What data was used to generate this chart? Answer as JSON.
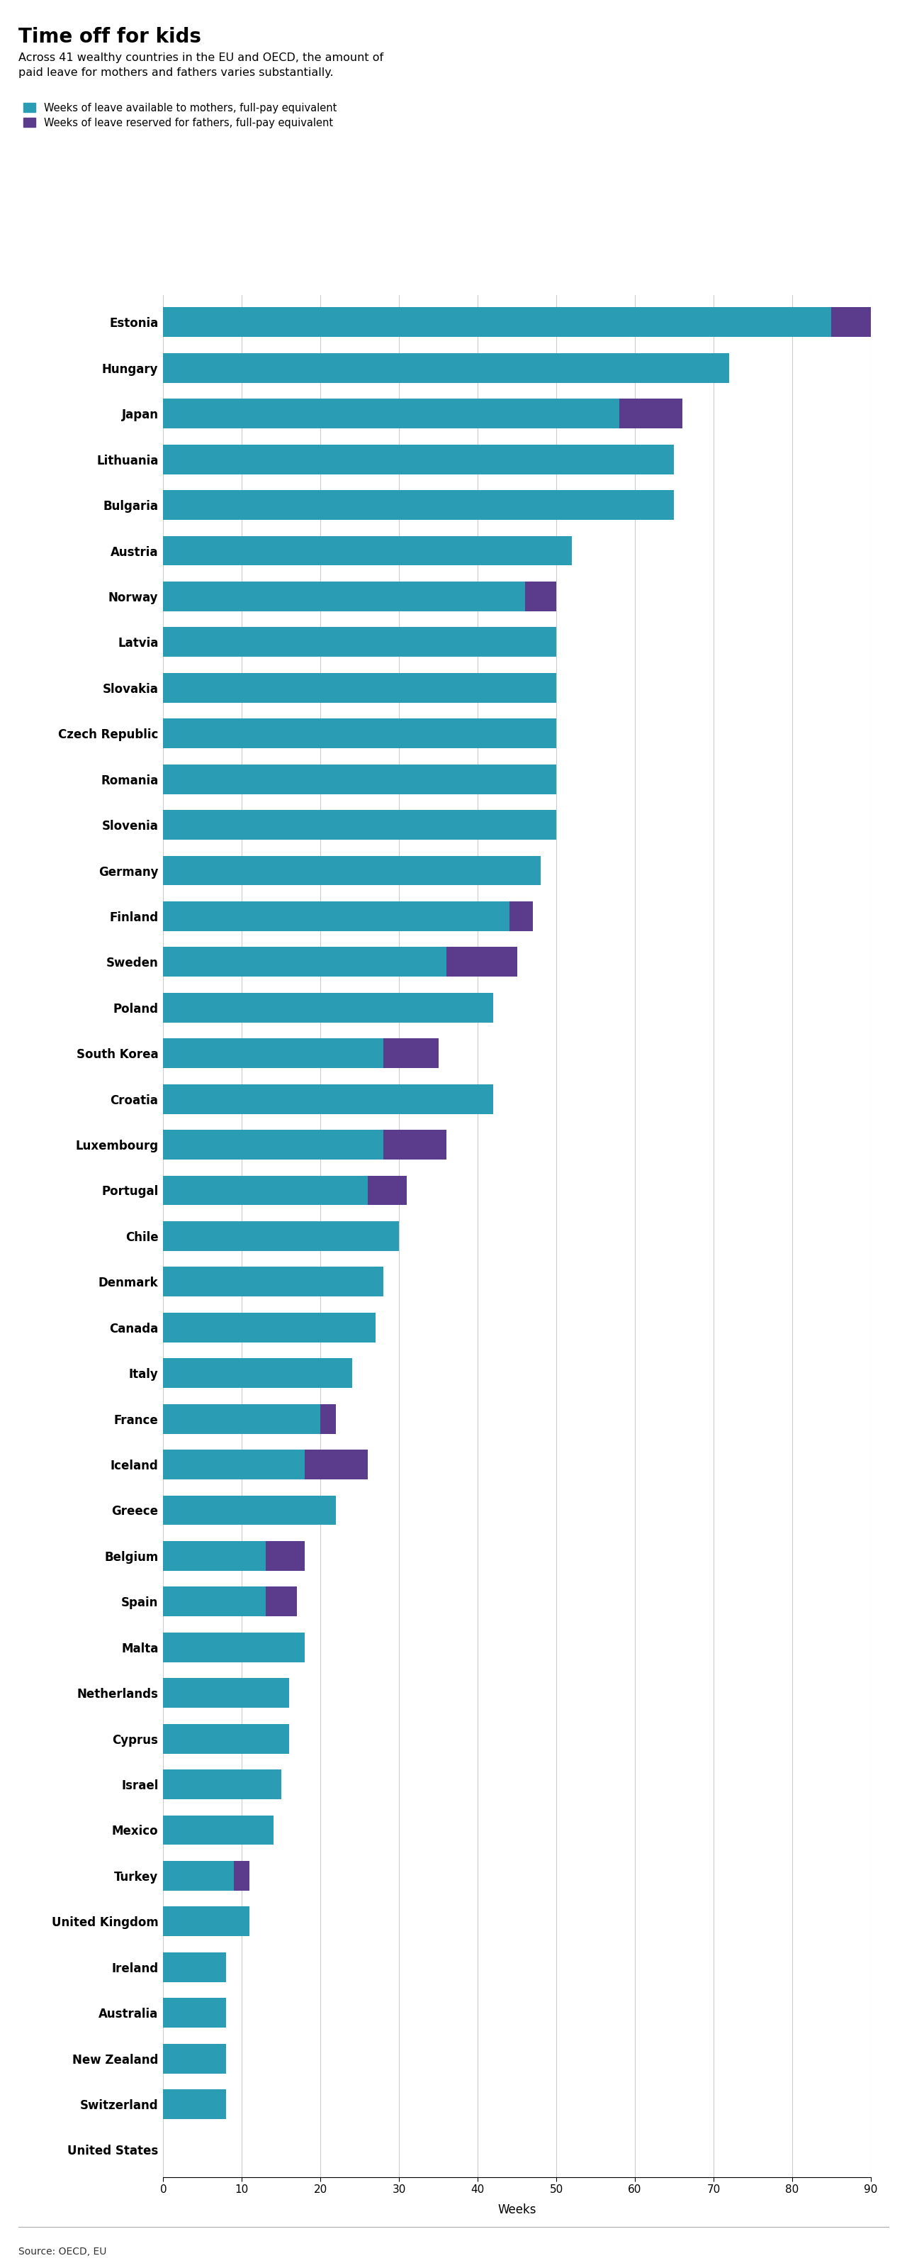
{
  "title": "Time off for kids",
  "subtitle": "Across 41 wealthy countries in the EU and OECD, the amount of\npaid leave for mothers and fathers varies substantially.",
  "legend_mothers": "Weeks of leave available to mothers, full-pay equivalent",
  "legend_fathers": "Weeks of leave reserved for fathers, full-pay equivalent",
  "color_mothers": "#2a9db5",
  "color_fathers": "#5b3b8c",
  "xlabel": "Weeks",
  "source": "Source: OECD, EU",
  "xlim": [
    0,
    90
  ],
  "xticks": [
    0,
    10,
    20,
    30,
    40,
    50,
    60,
    70,
    80,
    90
  ],
  "countries": [
    "Estonia",
    "Hungary",
    "Japan",
    "Lithuania",
    "Bulgaria",
    "Austria",
    "Norway",
    "Latvia",
    "Slovakia",
    "Czech Republic",
    "Romania",
    "Slovenia",
    "Germany",
    "Finland",
    "Sweden",
    "Poland",
    "South Korea",
    "Croatia",
    "Luxembourg",
    "Portugal",
    "Chile",
    "Denmark",
    "Canada",
    "Italy",
    "France",
    "Iceland",
    "Greece",
    "Belgium",
    "Spain",
    "Malta",
    "Netherlands",
    "Cyprus",
    "Israel",
    "Mexico",
    "Turkey",
    "United Kingdom",
    "Ireland",
    "Australia",
    "New Zealand",
    "Switzerland",
    "United States"
  ],
  "mothers": [
    85,
    72,
    58,
    65,
    65,
    52,
    46,
    50,
    50,
    50,
    50,
    50,
    48,
    44,
    36,
    42,
    28,
    42,
    28,
    26,
    30,
    28,
    27,
    24,
    20,
    18,
    22,
    13,
    13,
    18,
    16,
    16,
    15,
    14,
    9,
    11,
    8,
    8,
    8,
    8,
    0
  ],
  "fathers": [
    5,
    0,
    8,
    0,
    0,
    0,
    4,
    0,
    0,
    0,
    0,
    0,
    0,
    3,
    9,
    0,
    7,
    0,
    8,
    5,
    0,
    0,
    0,
    0,
    2,
    8,
    0,
    5,
    4,
    0,
    0,
    0,
    0,
    0,
    2,
    0,
    0,
    0,
    0,
    0,
    0
  ]
}
